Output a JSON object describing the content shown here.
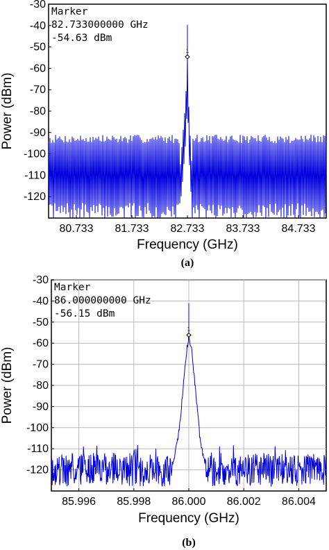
{
  "chart_data": [
    {
      "type": "line",
      "caption": "(a)",
      "xlabel": "Frequency (GHz)",
      "ylabel": "Power (dBm)",
      "xlim": [
        80.233,
        85.233
      ],
      "ylim": [
        -130,
        -30
      ],
      "xticks": [
        "80.733",
        "81.733",
        "82.733",
        "83.733",
        "84.733"
      ],
      "yticks": [
        "-30",
        "-40",
        "-50",
        "-60",
        "-70",
        "-80",
        "-90",
        "-100",
        "-110",
        "-120"
      ],
      "grid": false,
      "marker": {
        "title": "Marker",
        "frequency": "82.733000000 GHz",
        "power": "-54.63 dBm",
        "label": "1",
        "x": 82.733,
        "y": -54.63
      },
      "series": [
        {
          "color": "#0000dd",
          "noise_floor_top_dBm": -93,
          "noise_floor_bottom_dBm": -127,
          "peak": [
            [
              82.6,
              -108
            ],
            [
              82.62,
              -100
            ],
            [
              82.64,
              -95
            ],
            [
              82.66,
              -88
            ],
            [
              82.68,
              -82
            ],
            [
              82.7,
              -75
            ],
            [
              82.72,
              -64
            ],
            [
              82.733,
              -54.63
            ],
            [
              82.745,
              -65
            ],
            [
              82.76,
              -80
            ],
            [
              82.78,
              -90
            ],
            [
              82.8,
              -100
            ],
            [
              82.82,
              -108
            ]
          ]
        }
      ]
    },
    {
      "type": "line",
      "caption": "(b)",
      "xlabel": "Frequency (GHz)",
      "ylabel": "Power (dBm)",
      "xlim": [
        85.995,
        86.005
      ],
      "ylim": [
        -130,
        -30
      ],
      "xticks": [
        "85.996",
        "85.998",
        "86.000",
        "86.002",
        "86.004"
      ],
      "yticks": [
        "-30",
        "-40",
        "-50",
        "-60",
        "-70",
        "-80",
        "-90",
        "-100",
        "-110",
        "-120"
      ],
      "grid": true,
      "marker": {
        "title": "Marker",
        "frequency": "86.000000000 GHz",
        "power": "-56.15 dBm",
        "label": "1",
        "x": 86.0,
        "y": -56.15
      },
      "series": [
        {
          "color": "#0000dd",
          "noise_floor_top_dBm": -112,
          "noise_floor_bottom_dBm": -128,
          "peak": [
            [
              85.9994,
              -120
            ],
            [
              85.9995,
              -112
            ],
            [
              85.9996,
              -105
            ],
            [
              85.9997,
              -95
            ],
            [
              85.9998,
              -80
            ],
            [
              85.9999,
              -66
            ],
            [
              86.0,
              -56.15
            ],
            [
              86.0001,
              -63
            ],
            [
              86.0002,
              -76
            ],
            [
              86.0003,
              -90
            ],
            [
              86.0004,
              -104
            ],
            [
              86.0005,
              -112
            ],
            [
              86.0006,
              -118
            ]
          ]
        }
      ]
    }
  ]
}
